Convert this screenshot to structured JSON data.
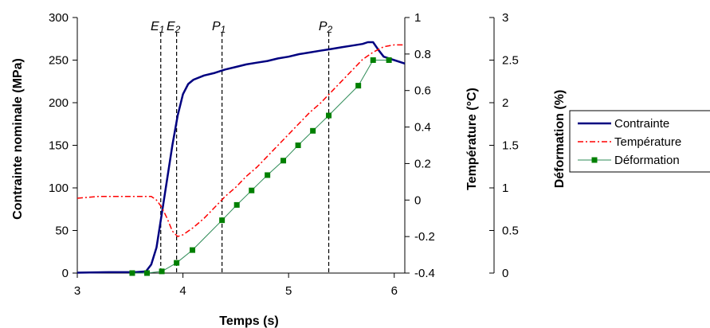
{
  "chart_data": {
    "type": "line",
    "x_axis": {
      "label": "Temps (s)",
      "range": [
        3,
        6.1
      ],
      "ticks": [
        3,
        4,
        5,
        6
      ],
      "tick_labels": [
        "3",
        "4",
        "5",
        "6"
      ]
    },
    "y_axes": [
      {
        "id": "contrainte",
        "label": "Contrainte nominale (MPa)",
        "side": "left",
        "range": [
          0,
          300
        ],
        "ticks": [
          0,
          50,
          100,
          150,
          200,
          250,
          300
        ],
        "tick_labels": [
          "0",
          "50",
          "100",
          "150",
          "200",
          "250",
          "300"
        ]
      },
      {
        "id": "temperature",
        "label": "Température (°C)",
        "side": "right",
        "range": [
          -0.4,
          1
        ],
        "ticks": [
          -0.4,
          -0.2,
          0,
          0.2,
          0.4,
          0.6,
          0.8,
          1
        ],
        "tick_labels": [
          "-0.4",
          "-0.2",
          "0",
          "0.2",
          "0.4",
          "0.6",
          "0.8",
          "1"
        ]
      },
      {
        "id": "deformation",
        "label": "Déformation (%)",
        "side": "right-outer",
        "range": [
          0,
          3
        ],
        "ticks": [
          0,
          0.5,
          1,
          1.5,
          2,
          2.5,
          3
        ],
        "tick_labels": [
          "0",
          "0.5",
          "1",
          "1.5",
          "2",
          "2.5",
          "3"
        ]
      }
    ],
    "vlines": [
      {
        "name": "E",
        "sub": "1",
        "x": 3.79
      },
      {
        "name": "E",
        "sub": "2",
        "x": 3.94
      },
      {
        "name": "P",
        "sub": "1",
        "x": 4.37
      },
      {
        "name": "P",
        "sub": "2",
        "x": 5.38
      }
    ],
    "series": [
      {
        "name": "Contrainte",
        "axis": "contrainte",
        "color": "#000080",
        "style": "solid",
        "points": [
          [
            3.0,
            0.5
          ],
          [
            3.3,
            1
          ],
          [
            3.55,
            1
          ],
          [
            3.65,
            2
          ],
          [
            3.7,
            10
          ],
          [
            3.75,
            30
          ],
          [
            3.8,
            70
          ],
          [
            3.85,
            110
          ],
          [
            3.9,
            150
          ],
          [
            3.95,
            185
          ],
          [
            4.0,
            210
          ],
          [
            4.05,
            222
          ],
          [
            4.1,
            227
          ],
          [
            4.2,
            232
          ],
          [
            4.3,
            235
          ],
          [
            4.4,
            239
          ],
          [
            4.5,
            242
          ],
          [
            4.6,
            245
          ],
          [
            4.7,
            247
          ],
          [
            4.8,
            249
          ],
          [
            4.9,
            252
          ],
          [
            5.0,
            254
          ],
          [
            5.1,
            257
          ],
          [
            5.2,
            259
          ],
          [
            5.3,
            261
          ],
          [
            5.4,
            263
          ],
          [
            5.5,
            265
          ],
          [
            5.6,
            267
          ],
          [
            5.7,
            269
          ],
          [
            5.75,
            271
          ],
          [
            5.8,
            271
          ],
          [
            5.85,
            262
          ],
          [
            5.9,
            254
          ],
          [
            6.0,
            250
          ],
          [
            6.1,
            246
          ]
        ]
      },
      {
        "name": "Température",
        "axis": "temperature",
        "color": "#ff0000",
        "style": "dashdot",
        "points": [
          [
            3.0,
            0.01
          ],
          [
            3.2,
            0.02
          ],
          [
            3.4,
            0.02
          ],
          [
            3.6,
            0.02
          ],
          [
            3.7,
            0.02
          ],
          [
            3.75,
            0.0
          ],
          [
            3.8,
            -0.04
          ],
          [
            3.85,
            -0.1
          ],
          [
            3.9,
            -0.17
          ],
          [
            3.95,
            -0.2
          ],
          [
            4.0,
            -0.19
          ],
          [
            4.1,
            -0.15
          ],
          [
            4.2,
            -0.1
          ],
          [
            4.3,
            -0.04
          ],
          [
            4.4,
            0.02
          ],
          [
            4.5,
            0.07
          ],
          [
            4.6,
            0.13
          ],
          [
            4.7,
            0.18
          ],
          [
            4.8,
            0.24
          ],
          [
            4.9,
            0.3
          ],
          [
            5.0,
            0.36
          ],
          [
            5.1,
            0.42
          ],
          [
            5.2,
            0.48
          ],
          [
            5.3,
            0.53
          ],
          [
            5.4,
            0.59
          ],
          [
            5.5,
            0.65
          ],
          [
            5.6,
            0.71
          ],
          [
            5.7,
            0.77
          ],
          [
            5.8,
            0.81
          ],
          [
            5.9,
            0.84
          ],
          [
            6.0,
            0.85
          ],
          [
            6.1,
            0.85
          ]
        ]
      },
      {
        "name": "Déformation",
        "axis": "deformation",
        "color": "#2e8b57",
        "marker_color": "#008000",
        "style": "solid-markers",
        "points": [
          [
            3.52,
            0.0
          ],
          [
            3.66,
            0.0
          ],
          [
            3.8,
            0.02
          ],
          [
            3.94,
            0.12
          ],
          [
            4.09,
            0.27
          ],
          [
            4.37,
            0.62
          ],
          [
            4.51,
            0.8
          ],
          [
            4.65,
            0.97
          ],
          [
            4.8,
            1.15
          ],
          [
            4.95,
            1.32
          ],
          [
            5.09,
            1.5
          ],
          [
            5.23,
            1.67
          ],
          [
            5.38,
            1.85
          ],
          [
            5.66,
            2.2
          ],
          [
            5.8,
            2.5
          ],
          [
            5.95,
            2.5
          ]
        ]
      }
    ],
    "legend": {
      "placement": "right",
      "entries": [
        "Contrainte",
        "Température",
        "Déformation"
      ]
    }
  }
}
